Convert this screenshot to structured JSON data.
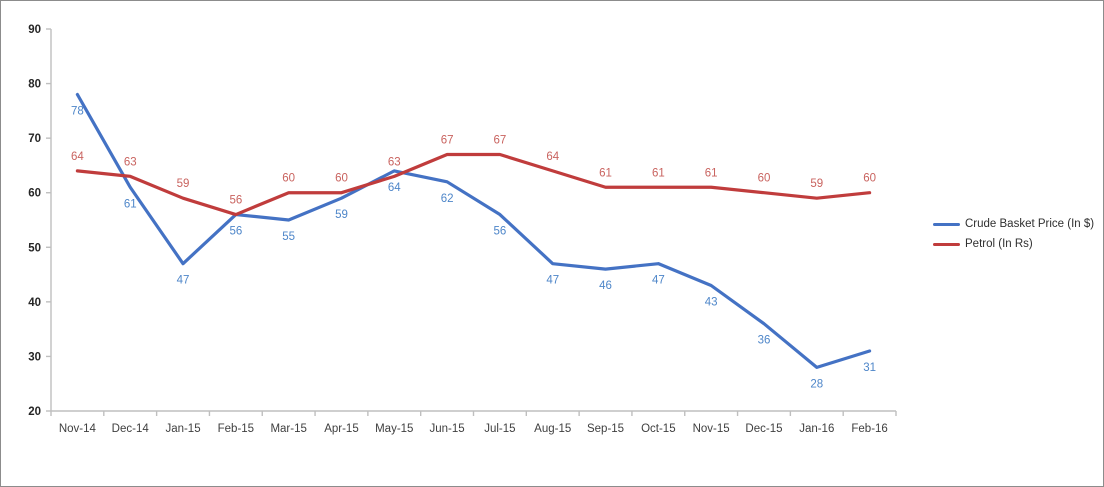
{
  "chart_data": {
    "type": "line",
    "title": "",
    "xlabel": "",
    "ylabel": "",
    "categories": [
      "Nov-14",
      "Dec-14",
      "Jan-15",
      "Feb-15",
      "Mar-15",
      "Apr-15",
      "May-15",
      "Jun-15",
      "Jul-15",
      "Aug-15",
      "Sep-15",
      "Oct-15",
      "Nov-15",
      "Dec-15",
      "Jan-16",
      "Feb-16"
    ],
    "series": [
      {
        "name": "Crude Basket Price (In $)",
        "values": [
          78,
          61,
          47,
          56,
          55,
          59,
          64,
          62,
          56,
          47,
          46,
          47,
          43,
          36,
          28,
          31
        ],
        "color": "#4472C4",
        "label_color": "#4E86C9",
        "label_position": "below"
      },
      {
        "name": "Petrol (In Rs)",
        "values": [
          64,
          63,
          59,
          56,
          60,
          60,
          63,
          67,
          67,
          64,
          61,
          61,
          61,
          60,
          59,
          60
        ],
        "color": "#C03C3C",
        "label_color": "#C9635F",
        "label_position": "above"
      }
    ],
    "ylim": [
      20,
      90
    ],
    "y_ticks": [
      20,
      30,
      40,
      50,
      60,
      70,
      80,
      90
    ],
    "grid": "off",
    "data_labels": "on",
    "legend_position": "right",
    "axis_color": "#BFBFBF",
    "y_tick_text_color": "#262626",
    "x_tick_text_color": "#3F3F3F"
  }
}
